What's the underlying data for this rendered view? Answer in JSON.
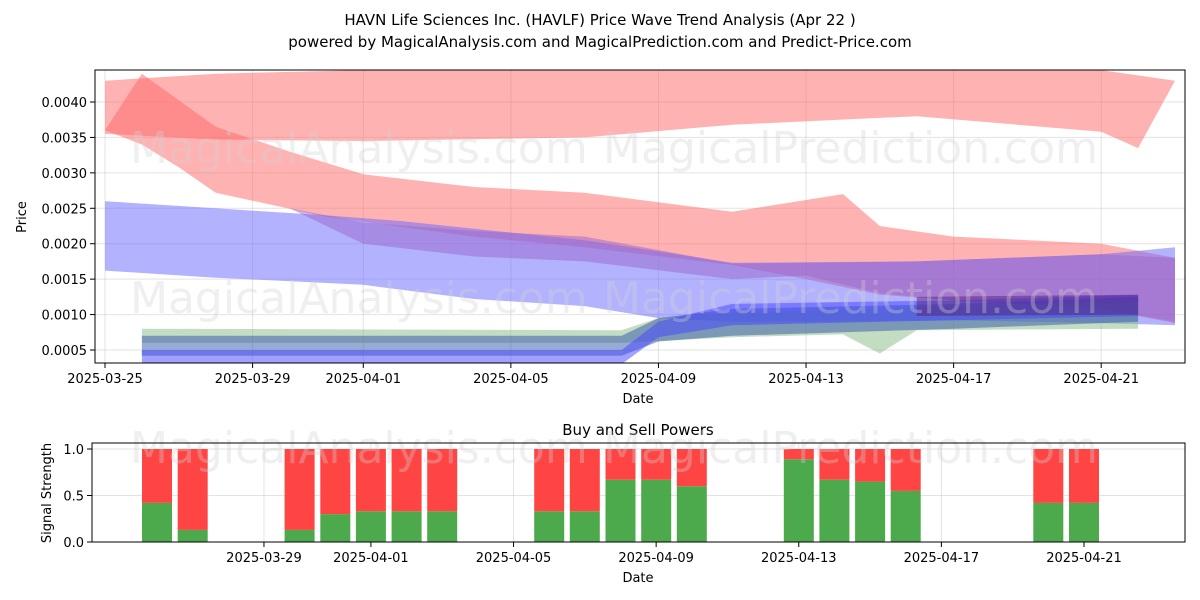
{
  "header": {
    "title": "HAVN Life Sciences Inc. (HAVLF) Price Wave Trend Analysis (Apr 22 )",
    "subtitle": "powered by MagicalAnalysis.com and MagicalPrediction.com and Predict-Price.com"
  },
  "watermarks": [
    "MagicalAnalysis.com",
    "MagicalPrediction.com"
  ],
  "chart_data": [
    {
      "type": "area",
      "xlabel": "Date",
      "ylabel": "Price",
      "x_ticks": [
        "2025-03-25",
        "2025-03-29",
        "2025-04-01",
        "2025-04-05",
        "2025-04-09",
        "2025-04-13",
        "2025-04-17",
        "2025-04-21"
      ],
      "y_ticks": [
        "0.0005",
        "0.0010",
        "0.0015",
        "0.0020",
        "0.0025",
        "0.0030",
        "0.0035",
        "0.0040"
      ],
      "xlim": [
        "2025-03-25",
        "2025-04-23"
      ],
      "ylim": [
        0.0003,
        0.0044
      ],
      "grid": true,
      "series": [
        {
          "color": "#ff6666",
          "upper": [
            [
              "2025-03-25",
              0.0043
            ],
            [
              "2025-03-28",
              0.0044
            ],
            [
              "2025-04-01",
              0.00445
            ],
            [
              "2025-04-07",
              0.0045
            ],
            [
              "2025-04-11",
              0.00452
            ],
            [
              "2025-04-16",
              0.00455
            ],
            [
              "2025-04-21",
              0.00445
            ],
            [
              "2025-04-23",
              0.0043
            ]
          ],
          "lower": [
            [
              "2025-03-25",
              0.00355
            ],
            [
              "2025-03-28",
              0.00347
            ],
            [
              "2025-04-01",
              0.00345
            ],
            [
              "2025-04-07",
              0.0035
            ],
            [
              "2025-04-11",
              0.00368
            ],
            [
              "2025-04-16",
              0.0038
            ],
            [
              "2025-04-21",
              0.00358
            ],
            [
              "2025-04-22",
              0.00335
            ]
          ]
        },
        {
          "color": "#ff6666",
          "upper": [
            [
              "2025-03-25",
              0.0036
            ],
            [
              "2025-03-26",
              0.0044
            ],
            [
              "2025-03-28",
              0.00365
            ],
            [
              "2025-03-30",
              0.0033
            ],
            [
              "2025-04-01",
              0.00298
            ],
            [
              "2025-04-04",
              0.0028
            ],
            [
              "2025-04-07",
              0.00272
            ],
            [
              "2025-04-11",
              0.00245
            ],
            [
              "2025-04-14",
              0.0027
            ],
            [
              "2025-04-15",
              0.00225
            ],
            [
              "2025-04-17",
              0.0021
            ],
            [
              "2025-04-21",
              0.002
            ],
            [
              "2025-04-23",
              0.0018
            ]
          ],
          "lower": [
            [
              "2025-03-25",
              0.0036
            ],
            [
              "2025-03-26",
              0.0034
            ],
            [
              "2025-03-27",
              0.00308
            ],
            [
              "2025-03-28",
              0.00272
            ],
            [
              "2025-03-31",
              0.00238
            ],
            [
              "2025-04-04",
              0.0021
            ],
            [
              "2025-04-07",
              0.00195
            ],
            [
              "2025-04-11",
              0.0017
            ],
            [
              "2025-04-13",
              0.0015
            ],
            [
              "2025-04-15",
              0.00128
            ],
            [
              "2025-04-17",
              0.0012
            ],
            [
              "2025-04-21",
              0.00108
            ],
            [
              "2025-04-23",
              0.00088
            ]
          ]
        },
        {
          "color": "#6666ff",
          "upper": [
            [
              "2025-03-25",
              0.0026
            ],
            [
              "2025-03-28",
              0.0025
            ],
            [
              "2025-03-31",
              0.0024
            ],
            [
              "2025-04-02",
              0.00232
            ],
            [
              "2025-04-07",
              0.00205
            ],
            [
              "2025-04-11",
              0.00173
            ],
            [
              "2025-04-16",
              0.00175
            ],
            [
              "2025-04-21",
              0.00185
            ],
            [
              "2025-04-23",
              0.00195
            ]
          ],
          "lower": [
            [
              "2025-03-25",
              0.00162
            ],
            [
              "2025-03-28",
              0.00152
            ],
            [
              "2025-04-01",
              0.00142
            ],
            [
              "2025-04-04",
              0.00122
            ],
            [
              "2025-04-07",
              0.00112
            ],
            [
              "2025-04-09",
              0.00095
            ],
            [
              "2025-04-11",
              0.0009
            ],
            [
              "2025-04-13",
              0.0009
            ],
            [
              "2025-04-17",
              0.00092
            ],
            [
              "2025-04-21",
              0.00088
            ],
            [
              "2025-04-23",
              0.00085
            ]
          ]
        },
        {
          "color": "#9966cc",
          "upper": [
            [
              "2025-03-30",
              0.0025
            ],
            [
              "2025-04-01",
              0.0023
            ],
            [
              "2025-04-04",
              0.00218
            ],
            [
              "2025-04-07",
              0.0021
            ],
            [
              "2025-04-11",
              0.00172
            ],
            [
              "2025-04-16",
              0.00175
            ],
            [
              "2025-04-21",
              0.00185
            ],
            [
              "2025-04-23",
              0.0018
            ]
          ],
          "lower": [
            [
              "2025-03-30",
              0.0025
            ],
            [
              "2025-04-01",
              0.002
            ],
            [
              "2025-04-04",
              0.00182
            ],
            [
              "2025-04-07",
              0.00175
            ],
            [
              "2025-04-11",
              0.0015
            ],
            [
              "2025-04-13",
              0.00155
            ],
            [
              "2025-04-15",
              0.0013
            ],
            [
              "2025-04-17",
              0.0012
            ],
            [
              "2025-04-21",
              0.00108
            ],
            [
              "2025-04-23",
              0.0009
            ]
          ]
        },
        {
          "color": "#88bb88",
          "upper": [
            [
              "2025-03-26",
              0.0008
            ],
            [
              "2025-04-08",
              0.00078
            ],
            [
              "2025-04-09",
              0.00095
            ],
            [
              "2025-04-11",
              0.00102
            ],
            [
              "2025-04-17",
              0.00112
            ],
            [
              "2025-04-22",
              0.00118
            ]
          ],
          "lower": [
            [
              "2025-03-26",
              0.0006
            ],
            [
              "2025-04-08",
              0.0006
            ],
            [
              "2025-04-11",
              0.00068
            ],
            [
              "2025-04-14",
              0.00072
            ],
            [
              "2025-04-15",
              0.00045
            ],
            [
              "2025-04-16",
              0.00078
            ],
            [
              "2025-04-22",
              0.0008
            ]
          ]
        },
        {
          "color": "#3355aa",
          "upper": [
            [
              "2025-03-26",
              0.0007
            ],
            [
              "2025-04-08",
              0.0007
            ],
            [
              "2025-04-09",
              0.00095
            ],
            [
              "2025-04-11",
              0.00108
            ],
            [
              "2025-04-17",
              0.00115
            ],
            [
              "2025-04-22",
              0.00125
            ]
          ],
          "lower": [
            [
              "2025-03-26",
              0.00042
            ],
            [
              "2025-04-08",
              0.00042
            ],
            [
              "2025-04-09",
              0.00062
            ],
            [
              "2025-04-11",
              0.0007
            ],
            [
              "2025-04-17",
              0.0008
            ],
            [
              "2025-04-22",
              0.0009
            ]
          ]
        },
        {
          "color": "#4444ff",
          "upper": [
            [
              "2025-03-26",
              0.0005
            ],
            [
              "2025-04-08",
              0.0005
            ],
            [
              "2025-04-09",
              0.0009
            ],
            [
              "2025-04-11",
              0.00115
            ],
            [
              "2025-04-17",
              0.0012
            ],
            [
              "2025-04-22",
              0.00128
            ]
          ],
          "lower": [
            [
              "2025-03-26",
              0.0003
            ],
            [
              "2025-04-08",
              0.0003
            ],
            [
              "2025-04-09",
              0.00068
            ],
            [
              "2025-04-11",
              0.00085
            ],
            [
              "2025-04-17",
              0.00092
            ],
            [
              "2025-04-22",
              0.00098
            ]
          ]
        },
        {
          "color": "#552277",
          "upper": [
            [
              "2025-04-16",
              0.00125
            ],
            [
              "2025-04-22",
              0.00128
            ]
          ],
          "lower": [
            [
              "2025-04-16",
              0.00098
            ],
            [
              "2025-04-22",
              0.001
            ]
          ]
        }
      ]
    },
    {
      "type": "bar",
      "title": "Buy and Sell Powers",
      "xlabel": "Date",
      "ylabel": "Signal Strength",
      "x_ticks": [
        "2025-03-29",
        "2025-04-01",
        "2025-04-05",
        "2025-04-09",
        "2025-04-13",
        "2025-04-17",
        "2025-04-21"
      ],
      "y_ticks": [
        "0.0",
        "0.5",
        "1.0"
      ],
      "ylim": [
        0,
        1.05
      ],
      "grid": true,
      "buy_color": "#4caa4c",
      "sell_color": "#ff4444",
      "dates": [
        "2025-03-26",
        "2025-03-27",
        "2025-03-30",
        "2025-03-31",
        "2025-04-01",
        "2025-04-02",
        "2025-04-03",
        "2025-04-06",
        "2025-04-07",
        "2025-04-08",
        "2025-04-09",
        "2025-04-10",
        "2025-04-13",
        "2025-04-14",
        "2025-04-15",
        "2025-04-16",
        "2025-04-20",
        "2025-04-21"
      ],
      "buy": [
        0.42,
        0.13,
        0.13,
        0.3,
        0.33,
        0.33,
        0.33,
        0.33,
        0.33,
        0.67,
        0.67,
        0.6,
        0.89,
        0.67,
        0.65,
        0.55,
        0.42,
        0.42
      ],
      "sell": [
        0.58,
        0.87,
        0.87,
        0.7,
        0.67,
        0.67,
        0.67,
        0.67,
        0.67,
        0.33,
        0.33,
        0.4,
        0.11,
        0.33,
        0.35,
        0.45,
        0.58,
        0.58
      ]
    }
  ]
}
